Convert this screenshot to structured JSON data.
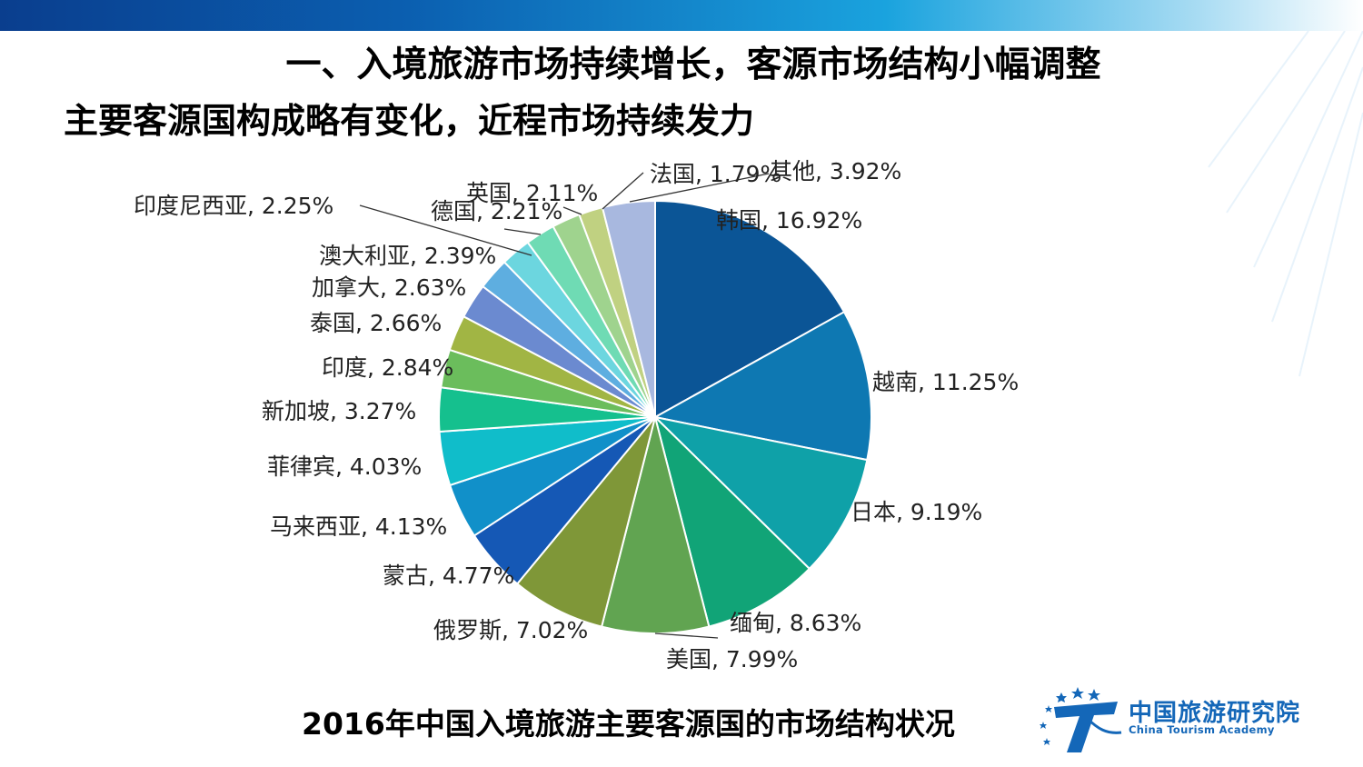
{
  "header": {
    "title": "一、入境旅游市场持续增长，客源市场结构小幅调整",
    "subtitle": "主要客源国构成略有变化，近程市场持续发力"
  },
  "caption": "2016年中国入境旅游主要客源国的市场结构状况",
  "logo": {
    "name_cn": "中国旅游研究院",
    "name_en": "China Tourism Academy"
  },
  "chart_data": {
    "type": "pie",
    "title": "",
    "slices": [
      {
        "label": "韩国",
        "value": 16.92,
        "text": "韩国, 16.92%",
        "color": "#0b5596"
      },
      {
        "label": "越南",
        "value": 11.25,
        "text": "越南, 11.25%",
        "color": "#0e78b2"
      },
      {
        "label": "日本",
        "value": 9.19,
        "text": "日本, 9.19%",
        "color": "#0fa1a8"
      },
      {
        "label": "缅甸",
        "value": 8.63,
        "text": "缅甸, 8.63%",
        "color": "#11a477"
      },
      {
        "label": "美国",
        "value": 7.99,
        "text": "美国, 7.99%",
        "color": "#61a451"
      },
      {
        "label": "俄罗斯",
        "value": 7.02,
        "text": "俄罗斯, 7.02%",
        "color": "#7f9738"
      },
      {
        "label": "蒙古",
        "value": 4.77,
        "text": "蒙古, 4.77%",
        "color": "#1558b5"
      },
      {
        "label": "马来西亚",
        "value": 4.13,
        "text": "马来西亚, 4.13%",
        "color": "#1190c9"
      },
      {
        "label": "菲律宾",
        "value": 4.03,
        "text": "菲律宾, 4.03%",
        "color": "#10bdca"
      },
      {
        "label": "新加坡",
        "value": 3.27,
        "text": "新加坡, 3.27%",
        "color": "#15c08e"
      },
      {
        "label": "印度",
        "value": 2.84,
        "text": "印度, 2.84%",
        "color": "#6bbd5c"
      },
      {
        "label": "泰国",
        "value": 2.66,
        "text": "泰国, 2.66%",
        "color": "#a1b544"
      },
      {
        "label": "加拿大",
        "value": 2.63,
        "text": "加拿大, 2.63%",
        "color": "#6b8ad0"
      },
      {
        "label": "澳大利亚",
        "value": 2.39,
        "text": "澳大利亚, 2.39%",
        "color": "#5eaee0"
      },
      {
        "label": "印度尼西亚",
        "value": 2.25,
        "text": "印度尼西亚, 2.25%",
        "color": "#6cd6df"
      },
      {
        "label": "德国",
        "value": 2.21,
        "text": "德国, 2.21%",
        "color": "#6fdbb4"
      },
      {
        "label": "英国",
        "value": 2.11,
        "text": "英国, 2.11%",
        "color": "#9fd38e"
      },
      {
        "label": "法国",
        "value": 1.79,
        "text": "法国, 1.79%",
        "color": "#c0d181"
      },
      {
        "label": "其他",
        "value": 3.92,
        "text": "其他, 3.92%",
        "color": "#a8b8df"
      }
    ]
  }
}
